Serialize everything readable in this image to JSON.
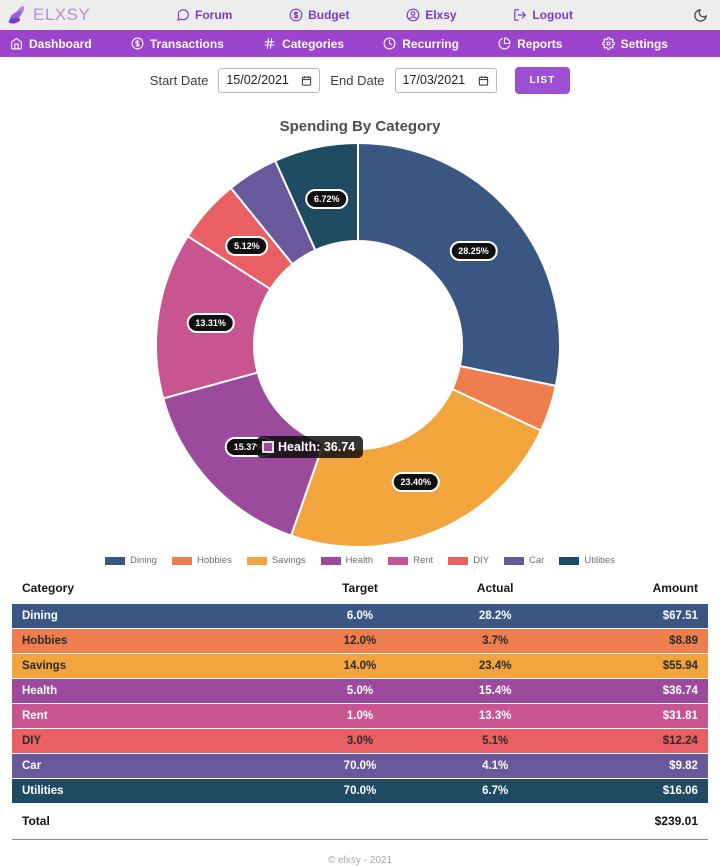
{
  "topbar": {
    "brand": "ELXSY",
    "links": [
      {
        "icon": "chat-icon",
        "label": "Forum"
      },
      {
        "icon": "dollar-circle-icon",
        "label": "Budget"
      },
      {
        "icon": "user-circle-icon",
        "label": "Elxsy"
      },
      {
        "icon": "logout-icon",
        "label": "Logout"
      }
    ]
  },
  "navbar": {
    "items": [
      {
        "icon": "home-icon",
        "label": "Dashboard"
      },
      {
        "icon": "dollar-circle-icon",
        "label": "Transactions"
      },
      {
        "icon": "hash-icon",
        "label": "Categories"
      },
      {
        "icon": "clock-icon",
        "label": "Recurring"
      },
      {
        "icon": "pie-chart-icon",
        "label": "Reports"
      },
      {
        "icon": "gear-icon",
        "label": "Settings"
      }
    ],
    "background": "#9c44cb"
  },
  "filters": {
    "start_label": "Start Date",
    "start_value": "15/02/2021",
    "end_label": "End Date",
    "end_value": "17/03/2021",
    "button_label": "LIST"
  },
  "chart_data": {
    "type": "pie",
    "donut": true,
    "title": "Spending By Category",
    "start_angle_deg": 0,
    "direction": "clockwise",
    "legend_position": "bottom",
    "slices": [
      {
        "label": "Dining",
        "value": 67.51,
        "percent": 28.25,
        "color": "#3A5683",
        "show_pct_label": true
      },
      {
        "label": "Hobbies",
        "value": 8.89,
        "percent": 3.72,
        "color": "#EE7E4D",
        "show_pct_label": false
      },
      {
        "label": "Savings",
        "value": 55.94,
        "percent": 23.4,
        "color": "#F2A43D",
        "show_pct_label": true
      },
      {
        "label": "Health",
        "value": 36.74,
        "percent": 15.37,
        "color": "#9C4A9C",
        "show_pct_label": true
      },
      {
        "label": "Rent",
        "value": 31.81,
        "percent": 13.31,
        "color": "#C85490",
        "show_pct_label": true
      },
      {
        "label": "DIY",
        "value": 12.24,
        "percent": 5.12,
        "color": "#E95F63",
        "show_pct_label": true
      },
      {
        "label": "Car",
        "value": 9.82,
        "percent": 4.11,
        "color": "#67599B",
        "show_pct_label": false
      },
      {
        "label": "Utilities",
        "value": 16.06,
        "percent": 6.72,
        "color": "#1E4B61",
        "show_pct_label": true
      }
    ],
    "tooltip": {
      "category": "Health",
      "text": "Health: 36.74"
    }
  },
  "table": {
    "headers": [
      "Category",
      "Target",
      "Actual",
      "Amount"
    ],
    "rows": [
      {
        "category": "Dining",
        "target": "6.0%",
        "actual": "28.2%",
        "amount": "$67.51",
        "color": "#3A5683"
      },
      {
        "category": "Hobbies",
        "target": "12.0%",
        "actual": "3.7%",
        "amount": "$8.89",
        "color": "#EE7E4D"
      },
      {
        "category": "Savings",
        "target": "14.0%",
        "actual": "23.4%",
        "amount": "$55.94",
        "color": "#F2A43D"
      },
      {
        "category": "Health",
        "target": "5.0%",
        "actual": "15.4%",
        "amount": "$36.74",
        "color": "#9C4A9C"
      },
      {
        "category": "Rent",
        "target": "1.0%",
        "actual": "13.3%",
        "amount": "$31.81",
        "color": "#C85490"
      },
      {
        "category": "DIY",
        "target": "3.0%",
        "actual": "5.1%",
        "amount": "$12.24",
        "color": "#E95F63"
      },
      {
        "category": "Car",
        "target": "70.0%",
        "actual": "4.1%",
        "amount": "$9.82",
        "color": "#67599B"
      },
      {
        "category": "Utilities",
        "target": "70.0%",
        "actual": "6.7%",
        "amount": "$16.06",
        "color": "#1E4B61"
      }
    ],
    "total_label": "Total",
    "total_value": "$239.01"
  },
  "footer": "© elxsy - 2021",
  "colors": {
    "accent_purple": "#9c44cb",
    "button_purple": "#9c4fd3",
    "topbar_bg": "#ededed",
    "link_purple": "#7d3cc2"
  }
}
